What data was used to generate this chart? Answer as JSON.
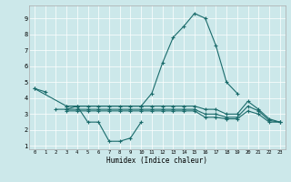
{
  "title": "",
  "xlabel": "Humidex (Indice chaleur)",
  "bg_color": "#cce8ea",
  "line_color": "#1a6b6b",
  "lines": [
    {
      "x": [
        0,
        1
      ],
      "y": [
        4.6,
        4.4
      ]
    },
    {
      "x": [
        2,
        3,
        4,
        5,
        6,
        7,
        8,
        9,
        10
      ],
      "y": [
        3.3,
        3.3,
        3.5,
        2.5,
        2.5,
        1.3,
        1.3,
        1.5,
        2.5
      ]
    },
    {
      "x": [
        0,
        3,
        4,
        10,
        11,
        12,
        13,
        14,
        15,
        16,
        17,
        18,
        19
      ],
      "y": [
        4.6,
        3.5,
        3.5,
        3.5,
        4.3,
        6.2,
        7.8,
        8.5,
        9.3,
        9.0,
        7.3,
        5.0,
        4.3
      ]
    },
    {
      "x": [
        3,
        4,
        5,
        6,
        7,
        8,
        9,
        10,
        11,
        12,
        13,
        14,
        15,
        16,
        17,
        18,
        19,
        20,
        21,
        22,
        23
      ],
      "y": [
        3.5,
        3.5,
        3.5,
        3.5,
        3.5,
        3.5,
        3.5,
        3.5,
        3.5,
        3.5,
        3.5,
        3.5,
        3.5,
        3.3,
        3.3,
        3.0,
        3.0,
        3.8,
        3.3,
        2.7,
        2.5
      ]
    },
    {
      "x": [
        3,
        4,
        5,
        6,
        7,
        8,
        9,
        10,
        11,
        12,
        13,
        14,
        15,
        16,
        17,
        18,
        19,
        20,
        21,
        22,
        23
      ],
      "y": [
        3.3,
        3.3,
        3.3,
        3.3,
        3.3,
        3.3,
        3.3,
        3.3,
        3.3,
        3.3,
        3.3,
        3.3,
        3.3,
        3.0,
        3.0,
        2.8,
        2.8,
        3.5,
        3.2,
        2.6,
        2.5
      ]
    },
    {
      "x": [
        3,
        4,
        5,
        6,
        7,
        8,
        9,
        10,
        11,
        12,
        13,
        14,
        15,
        16,
        17,
        18,
        19,
        20,
        21,
        22,
        23
      ],
      "y": [
        3.2,
        3.2,
        3.2,
        3.2,
        3.2,
        3.2,
        3.2,
        3.2,
        3.2,
        3.2,
        3.2,
        3.2,
        3.2,
        2.8,
        2.8,
        2.7,
        2.7,
        3.2,
        3.0,
        2.5,
        2.5
      ]
    }
  ],
  "xlim": [
    -0.5,
    23.5
  ],
  "ylim": [
    0.8,
    9.8
  ],
  "yticks": [
    1,
    2,
    3,
    4,
    5,
    6,
    7,
    8,
    9
  ],
  "xticks": [
    0,
    1,
    2,
    3,
    4,
    5,
    6,
    7,
    8,
    9,
    10,
    11,
    12,
    13,
    14,
    15,
    16,
    17,
    18,
    19,
    20,
    21,
    22,
    23
  ],
  "figsize": [
    3.2,
    2.0
  ],
  "dpi": 100
}
